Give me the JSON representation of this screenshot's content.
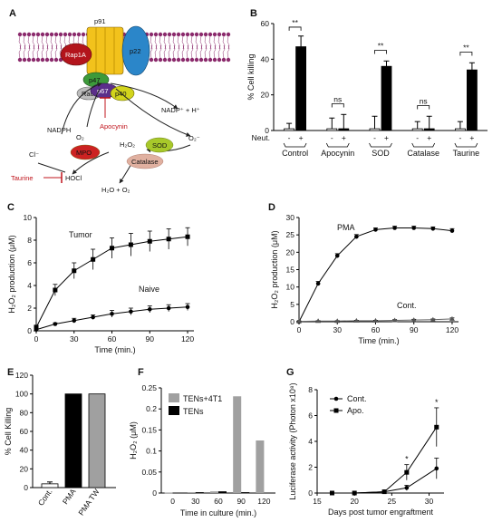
{
  "panel_a": {
    "letter": "A",
    "labels": {
      "p91": "p91",
      "rap1a": "Rap1A",
      "p22": "p22",
      "p47": "p47",
      "rac": "Rac",
      "p67": "p67",
      "p40": "p40",
      "nadph": "NADPH",
      "nadp": "NADP⁺ + H⁺",
      "o2": "O₂",
      "apocynin": "Apocynin",
      "superoxide": "O₂⁻",
      "h2o2": "H₂O₂",
      "cl": "Cl⁻",
      "mpo": "MPO",
      "sod": "SOD",
      "catalase": "Catalase",
      "taurine": "Taurine",
      "hocl": "HOCl",
      "water": "H₂O + O₂"
    },
    "colors": {
      "membrane": "#8b2a6c",
      "p91": "#f2c21c",
      "rap1a": "#b3141c",
      "p22": "#2b86c9",
      "p47": "#3d9a3a",
      "p67": "#5b2e8a",
      "p40": "#d2d41c",
      "rac": "#bdbdbd",
      "mpo": "#cc2222",
      "sod": "#a8c82a",
      "catalase": "#e0b0a0",
      "inhibitor": "#c0141c"
    }
  },
  "chart_data": [
    {
      "panel": "B",
      "type": "bar",
      "ylabel": "% Cell killing",
      "ylim": [
        0,
        60
      ],
      "yticks": [
        0,
        20,
        40,
        60
      ],
      "row_label": "Neut.",
      "bar_signs": [
        "-",
        "+"
      ],
      "groups": [
        "Control",
        "Apocynin",
        "SOD",
        "Catalase",
        "Taurine"
      ],
      "series": [
        {
          "values": [
            1,
            1,
            1,
            1,
            1
          ],
          "errors": [
            3,
            6,
            7,
            4,
            4
          ],
          "color": "#ffffff"
        },
        {
          "values": [
            47,
            1,
            36,
            1,
            34
          ],
          "errors": [
            6,
            8,
            3,
            7,
            4
          ],
          "color": "#000000"
        }
      ],
      "significance": [
        "**",
        "ns",
        "**",
        "ns",
        "**"
      ]
    },
    {
      "panel": "C",
      "type": "line",
      "xlabel": "Time (min.)",
      "ylabel": "H₂O₂ production (μM)",
      "xlim": [
        0,
        125
      ],
      "ylim": [
        0,
        10
      ],
      "xticks": [
        0,
        30,
        60,
        90,
        120
      ],
      "yticks": [
        0,
        2,
        4,
        6,
        8,
        10
      ],
      "series": [
        {
          "name": "Tumor",
          "x": [
            0,
            15,
            30,
            45,
            60,
            75,
            90,
            105,
            120
          ],
          "y": [
            0.3,
            3.6,
            5.3,
            6.3,
            7.3,
            7.6,
            7.9,
            8.1,
            8.3
          ],
          "errors": [
            0.2,
            0.5,
            0.7,
            0.9,
            0.9,
            1.0,
            0.9,
            0.9,
            0.8
          ]
        },
        {
          "name": "Naive",
          "x": [
            0,
            15,
            30,
            45,
            60,
            75,
            90,
            105,
            120
          ],
          "y": [
            0.1,
            0.6,
            0.9,
            1.2,
            1.5,
            1.7,
            1.9,
            2.0,
            2.1
          ],
          "errors": [
            0.1,
            0.1,
            0.2,
            0.2,
            0.3,
            0.3,
            0.3,
            0.3,
            0.3
          ]
        }
      ]
    },
    {
      "panel": "D",
      "type": "line",
      "xlabel": "Time (min.)",
      "ylabel": "H₂O₂ production (μM)",
      "xlim": [
        0,
        125
      ],
      "ylim": [
        0,
        30
      ],
      "xticks": [
        0,
        30,
        60,
        90,
        120
      ],
      "yticks": [
        0,
        5,
        10,
        15,
        20,
        25,
        30
      ],
      "series": [
        {
          "name": "PMA",
          "x": [
            0,
            15,
            30,
            45,
            60,
            75,
            90,
            105,
            120
          ],
          "y": [
            0,
            11,
            19,
            24.5,
            26.5,
            27,
            27,
            26.8,
            26.2
          ],
          "errors": [
            0.2,
            0.6,
            0.6,
            0.6,
            0.5,
            0.5,
            0.5,
            0.5,
            0.6
          ]
        },
        {
          "name": "Cont.",
          "x": [
            0,
            15,
            30,
            45,
            60,
            75,
            90,
            105,
            120
          ],
          "y": [
            0.1,
            0.2,
            0.2,
            0.3,
            0.3,
            0.4,
            0.5,
            0.6,
            0.8
          ],
          "errors": [
            0.1,
            0.1,
            0.1,
            0.1,
            0.1,
            0.2,
            0.2,
            0.2,
            0.3
          ]
        }
      ]
    },
    {
      "panel": "E",
      "type": "bar",
      "ylabel": "% Cell Killing",
      "ylim": [
        0,
        120
      ],
      "yticks": [
        0,
        20,
        40,
        60,
        80,
        100,
        120
      ],
      "categories": [
        "Cont.",
        "PMA",
        "PMA TW"
      ],
      "values": [
        4,
        100,
        100
      ],
      "errors": [
        2,
        0,
        0
      ],
      "colors": [
        "#ffffff",
        "#000000",
        "#a0a0a0"
      ]
    },
    {
      "panel": "F",
      "type": "bar",
      "xlabel": "Time in culture (min.)",
      "ylabel": "H₂O₂ (μM)",
      "ylim": [
        0,
        0.25
      ],
      "yticks": [
        0,
        0.05,
        0.1,
        0.15,
        0.2,
        0.25
      ],
      "categories": [
        "0",
        "30",
        "60",
        "90",
        "120"
      ],
      "series": [
        {
          "name": "TENs+4T1",
          "values": [
            0.001,
            0.002,
            0.004,
            0.23,
            0.125
          ],
          "color": "#a0a0a0"
        },
        {
          "name": "TENs",
          "values": [
            0.001,
            0.002,
            0.004,
            0.002,
            0.001
          ],
          "color": "#000000"
        }
      ]
    },
    {
      "panel": "G",
      "type": "line",
      "xlabel": "Days post tumor engraftment",
      "ylabel": "Luciferase activity (Photon x10⁸)",
      "xlim": [
        15,
        32
      ],
      "ylim": [
        0,
        8
      ],
      "xticks": [
        15,
        20,
        25,
        30
      ],
      "yticks": [
        0,
        2,
        4,
        6,
        8
      ],
      "series": [
        {
          "name": "Cont.",
          "marker": "circle",
          "x": [
            17,
            20,
            24,
            27,
            31
          ],
          "y": [
            0,
            0,
            0.1,
            0.4,
            1.9
          ],
          "errors": [
            0,
            0,
            0.05,
            0.2,
            0.8
          ]
        },
        {
          "name": "Apo.",
          "marker": "square",
          "x": [
            17,
            20,
            24,
            27,
            31
          ],
          "y": [
            0,
            0,
            0.1,
            1.6,
            5.1
          ],
          "errors": [
            0,
            0,
            0.05,
            0.6,
            1.5
          ]
        }
      ],
      "annotations": [
        {
          "x": 27,
          "text": "*"
        },
        {
          "x": 31,
          "text": "*"
        }
      ]
    }
  ],
  "panel_letters": {
    "B": "B",
    "C": "C",
    "D": "D",
    "E": "E",
    "F": "F",
    "G": "G"
  }
}
